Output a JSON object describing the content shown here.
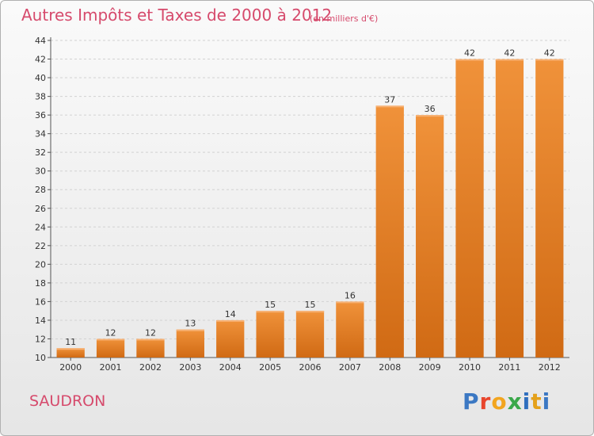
{
  "header": {
    "title": "Autres Impôts et Taxes de 2000 à 2012",
    "subtitle": "(en milliers d'€)"
  },
  "footer": {
    "commune": "SAUDRON",
    "logo": "Proxiti",
    "logo_colors": [
      "#3b78c3",
      "#e8452c",
      "#f2a51f",
      "#3aa84a",
      "#2f6fbe",
      "#e4a11b"
    ]
  },
  "chart_data": {
    "type": "bar",
    "categories": [
      "2000",
      "2001",
      "2002",
      "2003",
      "2004",
      "2005",
      "2006",
      "2007",
      "2008",
      "2009",
      "2010",
      "2011",
      "2012"
    ],
    "values": [
      11,
      12,
      12,
      13,
      14,
      15,
      15,
      16,
      37,
      36,
      42,
      42,
      42
    ],
    "ylim": [
      10,
      44
    ],
    "yticks": [
      10,
      12,
      14,
      16,
      18,
      20,
      22,
      24,
      26,
      28,
      30,
      32,
      34,
      36,
      38,
      40,
      42,
      44
    ],
    "grid": true,
    "bar_color": "#f0923a",
    "bar_color_dark": "#d06a14",
    "title": "Autres Impôts et Taxes de 2000 à 2012",
    "xlabel": "",
    "ylabel": ""
  }
}
